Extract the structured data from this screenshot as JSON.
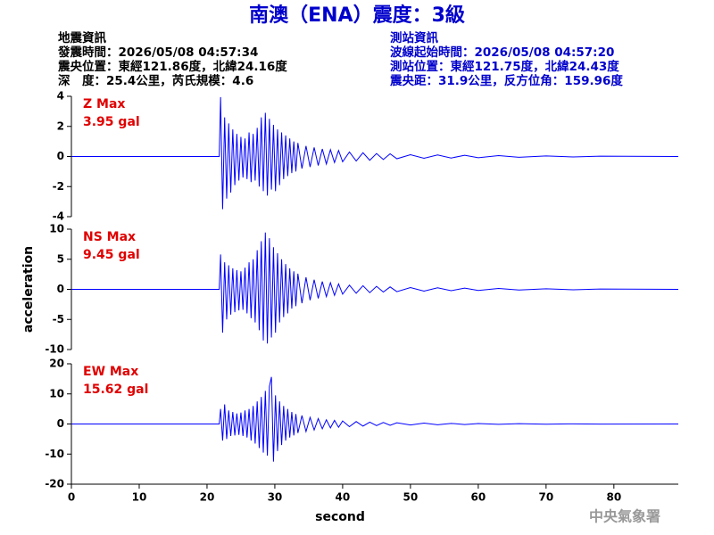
{
  "header": {
    "title": "南澳（ENA）震度：3級",
    "left": [
      "地震資訊",
      "發震時間：2026/05/08 04:57:34",
      "震央位置：東經121.86度，北緯24.16度",
      "深　度：25.4公里，芮氏規模：4.6"
    ],
    "right": [
      "測站資訊",
      "波線起始時間：2026/05/08 04:57:20",
      "測站位置：東經121.75度，北緯24.43度",
      "震央距：31.9公里，反方位角：159.96度"
    ],
    "footer": "中央氣象署"
  },
  "chart_data": [
    {
      "type": "line",
      "annotations": [
        "Z Max",
        "3.95 gal"
      ],
      "xlim": [
        0,
        89.5
      ],
      "ylim": [
        -4,
        4
      ],
      "yticks": [
        -4,
        -2,
        0,
        2,
        4
      ],
      "x": [
        0,
        21.8,
        22,
        22.3,
        22.6,
        22.9,
        23.2,
        23.5,
        23.8,
        24.1,
        24.4,
        24.7,
        25,
        25.3,
        25.6,
        25.9,
        26.2,
        26.5,
        26.8,
        27.1,
        27.4,
        27.7,
        28,
        28.3,
        28.6,
        28.9,
        29.2,
        29.5,
        29.8,
        30.1,
        30.4,
        30.7,
        31,
        31.3,
        31.6,
        31.9,
        32.2,
        32.5,
        32.8,
        33.1,
        33.4,
        34,
        34.6,
        35.2,
        35.8,
        36.4,
        37,
        37.6,
        38.2,
        38.8,
        39.4,
        40,
        41,
        42,
        43,
        44,
        45,
        46,
        47,
        48,
        50,
        52,
        54,
        56,
        58,
        60,
        63,
        66,
        70,
        74,
        78,
        89.5
      ],
      "series": [
        {
          "color": "#0000ff",
          "values": [
            0,
            0,
            3.95,
            -3.5,
            2.6,
            -2.8,
            2.2,
            -2.4,
            1.8,
            -1.9,
            1.5,
            -1.6,
            1.3,
            -1.4,
            1.2,
            -1.5,
            1.6,
            -1.7,
            1.5,
            -1.6,
            1.9,
            -2.0,
            2.6,
            -2.3,
            2.9,
            -2.6,
            2.5,
            -2.2,
            2.1,
            -2.3,
            1.8,
            -1.9,
            1.6,
            -1.5,
            1.4,
            -1.3,
            1.2,
            -1.1,
            1.0,
            -1.0,
            0.9,
            -0.8,
            0.7,
            -0.7,
            0.6,
            -0.6,
            0.5,
            -0.5,
            0.45,
            -0.4,
            0.4,
            -0.35,
            0.3,
            -0.3,
            0.25,
            -0.25,
            0.2,
            -0.2,
            0.18,
            -0.15,
            0.12,
            -0.12,
            0.1,
            -0.1,
            0.08,
            -0.08,
            0.06,
            -0.05,
            0.04,
            -0.03,
            0.02,
            0
          ]
        }
      ]
    },
    {
      "type": "line",
      "annotations": [
        "NS Max",
        "9.45 gal"
      ],
      "ylabel": "acceleration",
      "xlim": [
        0,
        89.5
      ],
      "ylim": [
        -10,
        10
      ],
      "yticks": [
        -10,
        -5,
        0,
        5,
        10
      ],
      "x": [
        0,
        21.8,
        22,
        22.3,
        22.6,
        22.9,
        23.2,
        23.5,
        23.8,
        24.1,
        24.4,
        24.7,
        25,
        25.3,
        25.6,
        25.9,
        26.2,
        26.5,
        26.8,
        27.1,
        27.4,
        27.7,
        28,
        28.3,
        28.6,
        28.9,
        29.2,
        29.5,
        29.8,
        30.1,
        30.4,
        30.7,
        31,
        31.3,
        31.6,
        31.9,
        32.2,
        32.5,
        32.8,
        33.1,
        33.4,
        34,
        34.6,
        35.2,
        35.8,
        36.4,
        37,
        37.6,
        38.2,
        38.8,
        39.4,
        40,
        41,
        42,
        43,
        44,
        45,
        46,
        47,
        48,
        50,
        52,
        54,
        56,
        58,
        60,
        63,
        66,
        70,
        74,
        78,
        89.5
      ],
      "series": [
        {
          "color": "#0000ff",
          "values": [
            0,
            0,
            5.8,
            -7.2,
            4.5,
            -5.0,
            4.0,
            -4.2,
            3.5,
            -3.8,
            3.2,
            -3.5,
            3.0,
            -3.4,
            3.6,
            -4.0,
            4.5,
            -4.8,
            5.0,
            -5.5,
            6.5,
            -6.8,
            8.0,
            -8.5,
            9.45,
            -9.0,
            8.5,
            -8.0,
            7.0,
            -7.2,
            6.0,
            -5.5,
            5.0,
            -4.6,
            4.2,
            -4.0,
            3.5,
            -3.2,
            3.0,
            -2.8,
            2.6,
            -2.3,
            2.0,
            -1.8,
            1.6,
            -1.5,
            1.3,
            -1.2,
            1.1,
            -1.0,
            0.9,
            -0.8,
            0.7,
            -0.65,
            0.6,
            -0.55,
            0.5,
            -0.45,
            0.4,
            -0.38,
            0.3,
            -0.3,
            0.25,
            -0.22,
            0.2,
            -0.18,
            0.15,
            -0.12,
            0.1,
            -0.08,
            0.05,
            0
          ]
        }
      ]
    },
    {
      "type": "line",
      "annotations": [
        "EW Max",
        "15.62 gal"
      ],
      "xlabel": "second",
      "xlim": [
        0,
        89.5
      ],
      "ylim": [
        -20,
        20
      ],
      "yticks": [
        -20,
        -10,
        0,
        10,
        20
      ],
      "xticks": [
        0,
        10,
        20,
        30,
        40,
        50,
        60,
        70,
        80
      ],
      "x": [
        0,
        21.8,
        22,
        22.3,
        22.6,
        22.9,
        23.2,
        23.5,
        23.8,
        24.1,
        24.4,
        24.7,
        25,
        25.3,
        25.6,
        25.9,
        26.2,
        26.5,
        26.8,
        27.1,
        27.4,
        27.7,
        28,
        28.3,
        28.6,
        28.9,
        29.2,
        29.5,
        29.8,
        30.1,
        30.4,
        30.7,
        31,
        31.3,
        31.6,
        31.9,
        32.2,
        32.5,
        32.8,
        33.1,
        33.4,
        34,
        34.6,
        35.2,
        35.8,
        36.4,
        37,
        37.6,
        38.2,
        38.8,
        39.4,
        40,
        41,
        42,
        43,
        44,
        45,
        46,
        47,
        48,
        50,
        52,
        54,
        56,
        58,
        60,
        63,
        66,
        70,
        74,
        78,
        89.5
      ],
      "series": [
        {
          "color": "#0000ff",
          "values": [
            0,
            0,
            5.0,
            -5.5,
            6.5,
            -5.0,
            4.5,
            -4.0,
            4.0,
            -3.8,
            3.5,
            -3.6,
            3.8,
            -4.0,
            4.5,
            -4.5,
            5.0,
            -5.5,
            6.0,
            -6.5,
            7.5,
            -8.0,
            9.0,
            -9.5,
            11.0,
            -10.5,
            12.5,
            15.62,
            -12.5,
            9.5,
            -9.0,
            7.5,
            -7.0,
            6.0,
            -5.5,
            5.0,
            -4.5,
            4.0,
            -3.8,
            3.3,
            -3.0,
            2.8,
            -2.5,
            2.2,
            -2.0,
            1.8,
            -1.6,
            1.4,
            -1.3,
            1.2,
            -1.1,
            1.0,
            -0.9,
            0.8,
            -0.7,
            0.6,
            -0.55,
            0.5,
            -0.45,
            0.4,
            -0.35,
            0.3,
            -0.25,
            0.2,
            -0.18,
            0.15,
            -0.12,
            0.1,
            -0.08,
            0.05,
            -0.03,
            0
          ]
        }
      ]
    }
  ]
}
